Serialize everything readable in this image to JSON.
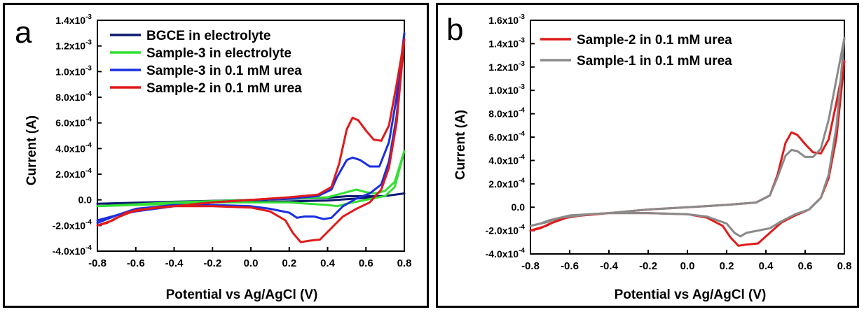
{
  "panels": [
    {
      "letter": "a",
      "xlabel": "Potential vs Ag/AgCl (V)",
      "ylabel": "Current (A)"
    },
    {
      "letter": "b",
      "xlabel": "Potential vs Ag/AgCl (V)",
      "ylabel": "Current (A)"
    }
  ],
  "chart_data": [
    {
      "type": "line",
      "xlabel": "Potential vs Ag/AgCl (V)",
      "ylabel": "Current (A)",
      "xlim": [
        -0.8,
        0.8
      ],
      "ylim": [
        -0.0004,
        0.0014
      ],
      "xticks": [
        "-0.8",
        "-0.6",
        "-0.4",
        "-0.2",
        "0.0",
        "0.2",
        "0.4",
        "0.6",
        "0.8"
      ],
      "yticks": [
        {
          "value": -0.0004,
          "mant": "-4.0x10",
          "exp": "-4"
        },
        {
          "value": -0.0002,
          "mant": "-2.0x10",
          "exp": "-4"
        },
        {
          "value": 0,
          "mant": "0.0",
          "exp": ""
        },
        {
          "value": 0.0002,
          "mant": "2.0x10",
          "exp": "-4"
        },
        {
          "value": 0.0004,
          "mant": "4.0x10",
          "exp": "-4"
        },
        {
          "value": 0.0006,
          "mant": "6.0x10",
          "exp": "-4"
        },
        {
          "value": 0.0008,
          "mant": "8.0x10",
          "exp": "-4"
        },
        {
          "value": 0.001,
          "mant": "1.0x10",
          "exp": "-3"
        },
        {
          "value": 0.0012,
          "mant": "1.2x10",
          "exp": "-3"
        },
        {
          "value": 0.0014,
          "mant": "1.4x10",
          "exp": "-3"
        }
      ],
      "legend_position": "top-left",
      "series": [
        {
          "name": "BGCE in electrolyte",
          "color": "#0a1a6e",
          "x": [
            -0.8,
            -0.6,
            -0.4,
            -0.2,
            0.0,
            0.2,
            0.4,
            0.5,
            0.6,
            0.7,
            0.8,
            0.7,
            0.6,
            0.5,
            0.4,
            0.2,
            0.0,
            -0.2,
            -0.4,
            -0.6,
            -0.8
          ],
          "y": [
            -3e-05,
            -2.2e-05,
            -1.5e-05,
            -8e-06,
            0.0,
            8e-06,
            1.6e-05,
            2.8e-05,
            2.8e-05,
            3e-05,
            5e-05,
            3e-05,
            1.5e-05,
            5e-06,
            -5e-06,
            -1.2e-05,
            -1.5e-05,
            -1.8e-05,
            -2.2e-05,
            -2.6e-05,
            -3e-05
          ]
        },
        {
          "name": "Sample-3 in electrolyte",
          "color": "#33e033",
          "x": [
            -0.8,
            -0.6,
            -0.4,
            -0.2,
            0.0,
            0.2,
            0.4,
            0.5,
            0.55,
            0.6,
            0.65,
            0.7,
            0.75,
            0.8,
            0.75,
            0.7,
            0.6,
            0.5,
            0.45,
            0.4,
            0.3,
            0.2,
            0.0,
            -0.2,
            -0.4,
            -0.6,
            -0.8
          ],
          "y": [
            -5e-05,
            -3.5e-05,
            -2e-05,
            -1e-05,
            0.0,
            1e-05,
            2e-05,
            6e-05,
            8e-05,
            6e-05,
            5e-05,
            7e-05,
            0.00014,
            0.00038,
            0.0001,
            3e-05,
            0.0,
            -3e-05,
            -5e-05,
            -4e-05,
            -3e-05,
            -2e-05,
            -2e-05,
            -2e-05,
            -3e-05,
            -4e-05,
            -5e-05
          ]
        },
        {
          "name": "Sample-3 in 0.1 mM urea",
          "color": "#1a2fe0",
          "x": [
            -0.8,
            -0.7,
            -0.6,
            -0.4,
            -0.2,
            0.0,
            0.2,
            0.35,
            0.42,
            0.45,
            0.5,
            0.53,
            0.57,
            0.62,
            0.67,
            0.72,
            0.76,
            0.8,
            0.76,
            0.72,
            0.68,
            0.62,
            0.55,
            0.48,
            0.42,
            0.38,
            0.33,
            0.28,
            0.24,
            0.2,
            0.1,
            0.0,
            -0.2,
            -0.4,
            -0.6,
            -0.7,
            -0.8
          ],
          "y": [
            -0.00016,
            -0.00012,
            -9e-05,
            -5e-05,
            -2e-05,
            0.0,
            1e-05,
            3e-05,
            8e-05,
            0.00018,
            0.00031,
            0.00033,
            0.00031,
            0.00026,
            0.00026,
            0.00045,
            0.0008,
            0.0013,
            0.00065,
            0.0003,
            0.00012,
            5e-05,
            1e-05,
            -5e-05,
            -0.00014,
            -0.00015,
            -0.00013,
            -0.00013,
            -0.00014,
            -0.0001,
            -7e-05,
            -5e-05,
            -4e-05,
            -4e-05,
            -7e-05,
            -0.00012,
            -0.00018
          ]
        },
        {
          "name": "Sample-2 in 0.1 mM urea",
          "color": "#e01a1a",
          "x": [
            -0.8,
            -0.72,
            -0.65,
            -0.5,
            -0.4,
            -0.2,
            0.0,
            0.2,
            0.35,
            0.42,
            0.46,
            0.5,
            0.53,
            0.56,
            0.6,
            0.64,
            0.68,
            0.72,
            0.76,
            0.8,
            0.76,
            0.72,
            0.68,
            0.62,
            0.55,
            0.48,
            0.42,
            0.36,
            0.3,
            0.26,
            0.22,
            0.18,
            0.1,
            0.0,
            -0.2,
            -0.4,
            -0.6,
            -0.7,
            -0.75,
            -0.8
          ],
          "y": [
            -0.0002,
            -0.00016,
            -0.0001,
            -6e-05,
            -5e-05,
            -2e-05,
            0.0,
            2e-05,
            4e-05,
            0.0001,
            0.00028,
            0.00055,
            0.00064,
            0.00062,
            0.00054,
            0.00047,
            0.00046,
            0.00058,
            0.0009,
            0.00125,
            0.0006,
            0.00025,
            8e-05,
            -2e-05,
            -7e-05,
            -0.00013,
            -0.00022,
            -0.00031,
            -0.00032,
            -0.00033,
            -0.00026,
            -0.00016,
            -9e-05,
            -6e-05,
            -5e-05,
            -5e-05,
            -8e-05,
            -0.00014,
            -0.00018,
            -0.0002
          ]
        }
      ]
    },
    {
      "type": "line",
      "xlabel": "Potential vs Ag/AgCl (V)",
      "ylabel": "Current (A)",
      "xlim": [
        -0.8,
        0.8
      ],
      "ylim": [
        -0.0004,
        0.0016
      ],
      "xticks": [
        "-0.8",
        "-0.6",
        "-0.4",
        "-0.2",
        "0.0",
        "0.2",
        "0.4",
        "0.6",
        "0.8"
      ],
      "yticks": [
        {
          "value": -0.0004,
          "mant": "-4.0x10",
          "exp": "-4"
        },
        {
          "value": -0.0002,
          "mant": "-2.0x10",
          "exp": "-4"
        },
        {
          "value": 0,
          "mant": "0.0",
          "exp": ""
        },
        {
          "value": 0.0002,
          "mant": "2.0x10",
          "exp": "-4"
        },
        {
          "value": 0.0004,
          "mant": "4.0x10",
          "exp": "-4"
        },
        {
          "value": 0.0006,
          "mant": "6.0x10",
          "exp": "-4"
        },
        {
          "value": 0.0008,
          "mant": "8.0x10",
          "exp": "-4"
        },
        {
          "value": 0.001,
          "mant": "1.0x10",
          "exp": "-3"
        },
        {
          "value": 0.0012,
          "mant": "1.2x10",
          "exp": "-3"
        },
        {
          "value": 0.0014,
          "mant": "1.4x10",
          "exp": "-3"
        },
        {
          "value": 0.0016,
          "mant": "1.6x10",
          "exp": "-3"
        }
      ],
      "legend_position": "top-left",
      "series": [
        {
          "name": "Sample-2 in 0.1 mM urea",
          "color": "#e01a1a",
          "x": [
            -0.8,
            -0.72,
            -0.65,
            -0.5,
            -0.4,
            -0.2,
            0.0,
            0.2,
            0.35,
            0.42,
            0.46,
            0.5,
            0.53,
            0.56,
            0.6,
            0.64,
            0.68,
            0.72,
            0.76,
            0.8,
            0.76,
            0.72,
            0.68,
            0.62,
            0.55,
            0.48,
            0.42,
            0.36,
            0.3,
            0.26,
            0.22,
            0.18,
            0.1,
            0.0,
            -0.2,
            -0.4,
            -0.6,
            -0.7,
            -0.75,
            -0.8
          ],
          "y": [
            -0.0002,
            -0.00016,
            -0.0001,
            -6e-05,
            -5e-05,
            -2e-05,
            0.0,
            2e-05,
            4e-05,
            0.0001,
            0.00028,
            0.00055,
            0.00064,
            0.00062,
            0.00054,
            0.00047,
            0.00046,
            0.00058,
            0.0009,
            0.00125,
            0.0006,
            0.00025,
            8e-05,
            -2e-05,
            -7e-05,
            -0.00013,
            -0.00022,
            -0.00031,
            -0.00032,
            -0.00033,
            -0.00026,
            -0.00016,
            -9e-05,
            -6e-05,
            -5e-05,
            -5e-05,
            -8e-05,
            -0.00014,
            -0.00018,
            -0.0002
          ]
        },
        {
          "name": "Sample-1 in 0.1 mM urea",
          "color": "#8a8a8a",
          "x": [
            -0.8,
            -0.72,
            -0.65,
            -0.5,
            -0.4,
            -0.2,
            0.0,
            0.2,
            0.35,
            0.42,
            0.46,
            0.5,
            0.53,
            0.56,
            0.6,
            0.64,
            0.68,
            0.72,
            0.76,
            0.8,
            0.76,
            0.72,
            0.68,
            0.62,
            0.55,
            0.48,
            0.42,
            0.36,
            0.3,
            0.27,
            0.24,
            0.2,
            0.1,
            0.0,
            -0.2,
            -0.4,
            -0.6,
            -0.7,
            -0.75,
            -0.8
          ],
          "y": [
            -0.00016,
            -0.00013,
            -9e-05,
            -6e-05,
            -5e-05,
            -2e-05,
            0.0,
            2e-05,
            4e-05,
            0.0001,
            0.00026,
            0.00044,
            0.00049,
            0.00048,
            0.00043,
            0.00043,
            0.0005,
            0.00075,
            0.0011,
            0.00145,
            0.0007,
            0.00028,
            8e-05,
            -2e-05,
            -6e-05,
            -0.00012,
            -0.00018,
            -0.0002,
            -0.00022,
            -0.00025,
            -0.00022,
            -0.00014,
            -8e-05,
            -6e-05,
            -5e-05,
            -5e-05,
            -7e-05,
            -0.00011,
            -0.00014,
            -0.00016
          ]
        }
      ]
    }
  ]
}
